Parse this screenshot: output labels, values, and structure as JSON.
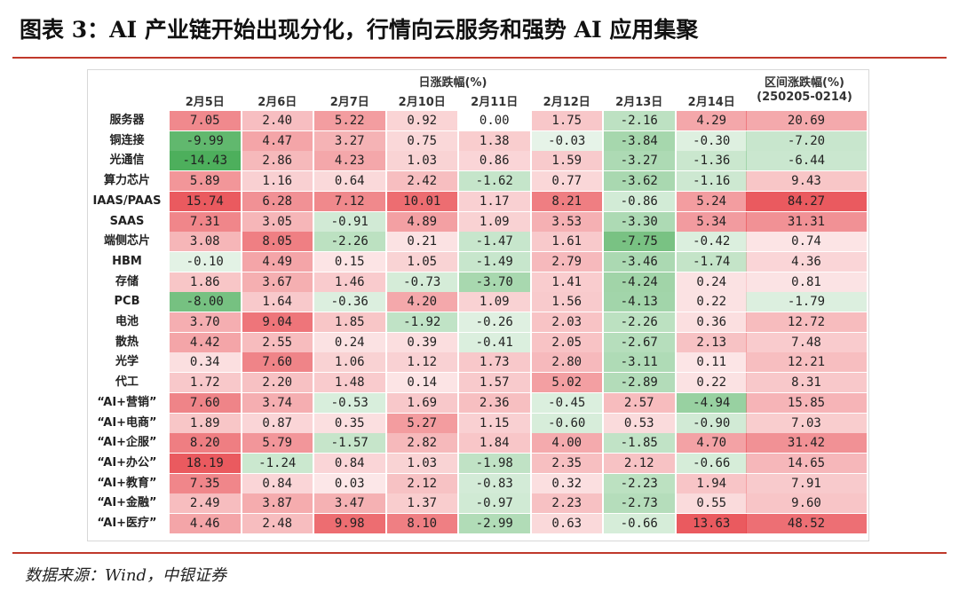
{
  "title": "图表 3：AI 产业链开始出现分化，行情向云服务和强势 AI 应用集聚",
  "source": "数据来源：Wind，中银证券",
  "headers": {
    "daily_group": "日涨跌幅(%)",
    "range_label": "区间涨跌幅(%)",
    "range_period": "(250205-0214)",
    "dates": [
      "2月5日",
      "2月6日",
      "2月7日",
      "2月10日",
      "2月11日",
      "2月12日",
      "2月13日",
      "2月14日"
    ]
  },
  "colors": {
    "positive": "#e8484e",
    "negative": "#3aa64a",
    "rule": "#c0392b"
  },
  "rows": [
    {
      "label": "服务器",
      "values": [
        "7.05",
        "2.40",
        "5.22",
        "0.92",
        "0.00",
        "1.75",
        "-2.16",
        "4.29"
      ],
      "range": "20.69"
    },
    {
      "label": "铜连接",
      "values": [
        "-9.99",
        "4.47",
        "3.27",
        "0.75",
        "1.38",
        "-0.03",
        "-3.84",
        "-0.30"
      ],
      "range": "-7.20"
    },
    {
      "label": "光通信",
      "values": [
        "-14.43",
        "2.86",
        "4.23",
        "1.03",
        "0.86",
        "1.59",
        "-3.27",
        "-1.36"
      ],
      "range": "-6.44"
    },
    {
      "label": "算力芯片",
      "values": [
        "5.89",
        "1.16",
        "0.64",
        "2.42",
        "-1.62",
        "0.77",
        "-3.62",
        "-1.16"
      ],
      "range": "9.43"
    },
    {
      "label": "IAAS/PAAS",
      "values": [
        "15.74",
        "6.28",
        "7.12",
        "10.01",
        "1.17",
        "8.21",
        "-0.86",
        "5.24"
      ],
      "range": "84.27"
    },
    {
      "label": "SAAS",
      "values": [
        "7.31",
        "3.05",
        "-0.91",
        "4.89",
        "1.09",
        "3.53",
        "-3.30",
        "5.34"
      ],
      "range": "31.31"
    },
    {
      "label": "端侧芯片",
      "values": [
        "3.08",
        "8.05",
        "-2.26",
        "0.21",
        "-1.47",
        "1.61",
        "-7.75",
        "-0.42"
      ],
      "range": "0.74"
    },
    {
      "label": "HBM",
      "values": [
        "-0.10",
        "4.49",
        "0.15",
        "1.05",
        "-1.49",
        "2.79",
        "-3.46",
        "-1.74"
      ],
      "range": "4.36"
    },
    {
      "label": "存储",
      "values": [
        "1.86",
        "3.67",
        "1.46",
        "-0.73",
        "-3.70",
        "1.41",
        "-4.24",
        "0.24"
      ],
      "range": "0.81"
    },
    {
      "label": "PCB",
      "values": [
        "-8.00",
        "1.64",
        "-0.36",
        "4.20",
        "1.09",
        "1.56",
        "-4.13",
        "0.22"
      ],
      "range": "-1.79"
    },
    {
      "label": "电池",
      "values": [
        "3.70",
        "9.04",
        "1.85",
        "-1.92",
        "-0.26",
        "2.03",
        "-2.26",
        "0.36"
      ],
      "range": "12.72"
    },
    {
      "label": "散热",
      "values": [
        "4.42",
        "2.55",
        "0.24",
        "0.39",
        "-0.41",
        "2.05",
        "-2.67",
        "2.13"
      ],
      "range": "7.48"
    },
    {
      "label": "光学",
      "values": [
        "0.34",
        "7.60",
        "1.06",
        "1.12",
        "1.73",
        "2.80",
        "-3.11",
        "0.11"
      ],
      "range": "12.21"
    },
    {
      "label": "代工",
      "values": [
        "1.72",
        "2.20",
        "1.48",
        "0.14",
        "1.57",
        "5.02",
        "-2.89",
        "0.22"
      ],
      "range": "8.31"
    },
    {
      "label": "“AI+营销”",
      "values": [
        "7.60",
        "3.74",
        "-0.53",
        "1.69",
        "2.36",
        "-0.45",
        "2.57",
        "-4.94"
      ],
      "range": "15.85"
    },
    {
      "label": "“AI+电商”",
      "values": [
        "1.89",
        "0.87",
        "0.35",
        "5.27",
        "1.15",
        "-0.60",
        "0.53",
        "-0.90"
      ],
      "range": "7.03"
    },
    {
      "label": "“AI+企服”",
      "values": [
        "8.20",
        "5.79",
        "-1.57",
        "2.82",
        "1.84",
        "4.00",
        "-1.85",
        "4.70"
      ],
      "range": "31.42"
    },
    {
      "label": "“AI+办公”",
      "values": [
        "18.19",
        "-1.24",
        "0.84",
        "1.03",
        "-1.98",
        "2.35",
        "2.12",
        "-0.66"
      ],
      "range": "14.65"
    },
    {
      "label": "“AI+教育”",
      "values": [
        "7.35",
        "0.84",
        "0.03",
        "2.12",
        "-0.83",
        "0.32",
        "-2.23",
        "1.94"
      ],
      "range": "7.91"
    },
    {
      "label": "“AI+金融”",
      "values": [
        "2.49",
        "3.87",
        "3.47",
        "1.37",
        "-0.97",
        "2.23",
        "-2.73",
        "0.55"
      ],
      "range": "9.60"
    },
    {
      "label": "“AI+医疗”",
      "values": [
        "4.46",
        "2.48",
        "9.98",
        "8.10",
        "-2.99",
        "0.63",
        "-0.66",
        "13.63"
      ],
      "range": "48.52"
    }
  ]
}
